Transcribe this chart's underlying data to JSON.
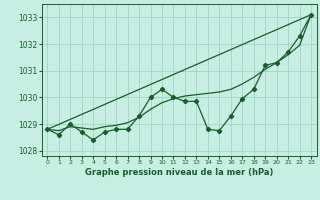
{
  "xlabel": "Graphe pression niveau de la mer (hPa)",
  "ylim": [
    1027.8,
    1033.5
  ],
  "xlim": [
    -0.5,
    23.5
  ],
  "yticks": [
    1028,
    1029,
    1030,
    1031,
    1032,
    1033
  ],
  "xticks": [
    0,
    1,
    2,
    3,
    4,
    5,
    6,
    7,
    8,
    9,
    10,
    11,
    12,
    13,
    14,
    15,
    16,
    17,
    18,
    19,
    20,
    21,
    22,
    23
  ],
  "background_color": "#c8eee4",
  "grid_color": "#a0d4c4",
  "line_color": "#1a5c2a",
  "series1_x": [
    0,
    1,
    2,
    3,
    4,
    5,
    6,
    7,
    8,
    9,
    10,
    11,
    12,
    13,
    14,
    15,
    16,
    17,
    18,
    19,
    20,
    21,
    22,
    23
  ],
  "series1_y": [
    1028.8,
    1028.6,
    1029.0,
    1028.7,
    1028.4,
    1028.7,
    1028.8,
    1028.8,
    1029.3,
    1030.0,
    1030.3,
    1030.0,
    1029.85,
    1029.85,
    1028.8,
    1028.75,
    1029.3,
    1029.95,
    1030.3,
    1031.2,
    1031.3,
    1031.7,
    1032.3,
    1033.1
  ],
  "trend_x": [
    0,
    23
  ],
  "trend_y": [
    1028.8,
    1033.1
  ],
  "smooth_x": [
    0,
    1,
    2,
    3,
    4,
    5,
    6,
    7,
    8,
    9,
    10,
    11,
    12,
    13,
    14,
    15,
    16,
    17,
    18,
    19,
    20,
    21,
    22,
    23
  ],
  "smooth_y": [
    1028.8,
    1028.75,
    1028.9,
    1028.85,
    1028.8,
    1028.9,
    1028.95,
    1029.05,
    1029.25,
    1029.55,
    1029.8,
    1029.95,
    1030.05,
    1030.1,
    1030.15,
    1030.2,
    1030.3,
    1030.5,
    1030.75,
    1031.05,
    1031.3,
    1031.6,
    1031.95,
    1033.1
  ]
}
